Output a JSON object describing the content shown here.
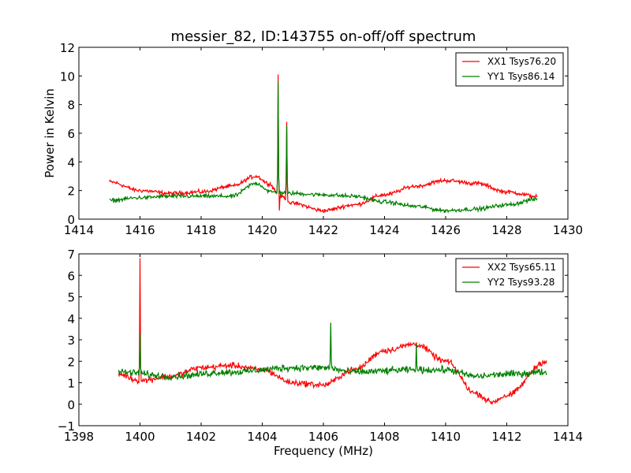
{
  "chart_data": [
    {
      "type": "line",
      "title": "messier_82, ID:143755 on-off/off spectrum",
      "xlabel": "",
      "ylabel": "Power in Kelvin",
      "xlim": [
        1414,
        1430
      ],
      "ylim": [
        0,
        12
      ],
      "xticks": [
        "1414",
        "1416",
        "1418",
        "1420",
        "1422",
        "1424",
        "1426",
        "1428",
        "1430"
      ],
      "yticks": [
        "0",
        "2",
        "4",
        "6",
        "8",
        "10",
        "12"
      ],
      "legend_position": "top-right",
      "series": [
        {
          "name": "XX1 Tsys76.20",
          "color": "#ff0000",
          "x_range": [
            1415.0,
            1429.0
          ],
          "noise": 0.12,
          "baseline": [
            [
              1415.0,
              2.6
            ],
            [
              1416.0,
              2.0
            ],
            [
              1417.0,
              1.8
            ],
            [
              1418.0,
              1.9
            ],
            [
              1419.0,
              2.3
            ],
            [
              1419.8,
              3.0
            ],
            [
              1420.2,
              2.5
            ],
            [
              1420.6,
              1.6
            ],
            [
              1421.0,
              1.1
            ],
            [
              1422.0,
              0.6
            ],
            [
              1423.0,
              1.0
            ],
            [
              1424.0,
              1.7
            ],
            [
              1425.0,
              2.3
            ],
            [
              1426.0,
              2.7
            ],
            [
              1427.0,
              2.5
            ],
            [
              1428.0,
              1.9
            ],
            [
              1429.0,
              1.6
            ]
          ],
          "peaks": [
            [
              1420.52,
              10.1
            ],
            [
              1420.8,
              6.8
            ]
          ],
          "dips": [
            [
              1420.56,
              0.6
            ]
          ]
        },
        {
          "name": "YY1 Tsys86.14",
          "color": "#008000",
          "x_range": [
            1415.0,
            1429.0
          ],
          "noise": 0.12,
          "baseline": [
            [
              1415.0,
              1.3
            ],
            [
              1416.0,
              1.5
            ],
            [
              1417.0,
              1.6
            ],
            [
              1418.0,
              1.6
            ],
            [
              1419.0,
              1.6
            ],
            [
              1419.8,
              2.5
            ],
            [
              1420.3,
              1.9
            ],
            [
              1421.0,
              1.8
            ],
            [
              1422.0,
              1.7
            ],
            [
              1423.0,
              1.6
            ],
            [
              1424.0,
              1.2
            ],
            [
              1425.0,
              0.9
            ],
            [
              1426.0,
              0.6
            ],
            [
              1427.0,
              0.7
            ],
            [
              1428.0,
              1.0
            ],
            [
              1429.0,
              1.4
            ]
          ],
          "peaks": [
            [
              1420.52,
              9.6
            ],
            [
              1420.8,
              6.5
            ]
          ],
          "dips": []
        }
      ]
    },
    {
      "type": "line",
      "title": "",
      "xlabel": "Frequency (MHz)",
      "ylabel": "",
      "xlim": [
        1398,
        1414
      ],
      "ylim": [
        -1,
        7
      ],
      "xticks": [
        "1398",
        "1400",
        "1402",
        "1404",
        "1406",
        "1408",
        "1410",
        "1412",
        "1414"
      ],
      "yticks": [
        "−1",
        "0",
        "1",
        "2",
        "3",
        "4",
        "5",
        "6",
        "7"
      ],
      "legend_position": "top-right",
      "series": [
        {
          "name": "XX2 Tsys65.11",
          "color": "#ff0000",
          "x_range": [
            1399.3,
            1413.3
          ],
          "noise": 0.12,
          "baseline": [
            [
              1399.3,
              1.4
            ],
            [
              1400.0,
              1.1
            ],
            [
              1401.0,
              1.3
            ],
            [
              1402.0,
              1.7
            ],
            [
              1403.0,
              1.8
            ],
            [
              1404.0,
              1.6
            ],
            [
              1405.0,
              1.0
            ],
            [
              1406.0,
              0.9
            ],
            [
              1407.0,
              1.6
            ],
            [
              1408.0,
              2.5
            ],
            [
              1409.0,
              2.8
            ],
            [
              1410.0,
              2.0
            ],
            [
              1411.0,
              0.5
            ],
            [
              1411.5,
              0.1
            ],
            [
              1412.0,
              0.4
            ],
            [
              1413.3,
              2.0
            ]
          ],
          "peaks": [
            [
              1400.0,
              6.8
            ]
          ],
          "dips": []
        },
        {
          "name": "YY2 Tsys93.28",
          "color": "#008000",
          "x_range": [
            1399.3,
            1413.3
          ],
          "noise": 0.14,
          "baseline": [
            [
              1399.3,
              1.5
            ],
            [
              1401.0,
              1.3
            ],
            [
              1403.0,
              1.5
            ],
            [
              1405.0,
              1.7
            ],
            [
              1406.0,
              1.7
            ],
            [
              1407.0,
              1.5
            ],
            [
              1409.0,
              1.6
            ],
            [
              1410.0,
              1.6
            ],
            [
              1411.0,
              1.3
            ],
            [
              1412.0,
              1.4
            ],
            [
              1413.3,
              1.5
            ]
          ],
          "peaks": [
            [
              1400.0,
              3.3
            ],
            [
              1406.25,
              3.8
            ],
            [
              1409.05,
              2.8
            ]
          ],
          "dips": []
        }
      ]
    }
  ]
}
